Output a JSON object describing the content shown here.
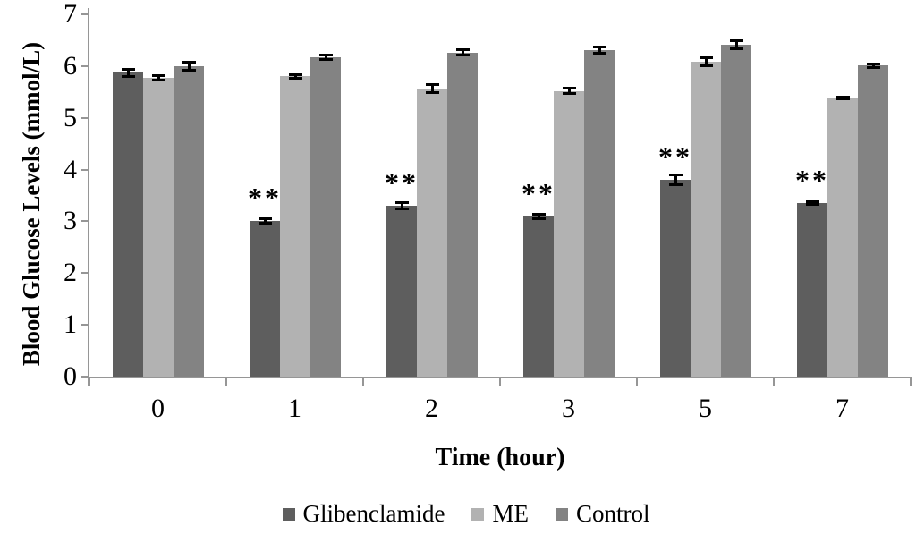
{
  "figure": {
    "y_axis_title": "Blood Glucose Levels (mmol/L)",
    "x_axis_title": "Time (hour)",
    "significance_marker": "**"
  },
  "legend": {
    "items": [
      {
        "label": "Glibenclamide",
        "color": "#5e5e5e"
      },
      {
        "label": "ME",
        "color": "#b2b2b2"
      },
      {
        "label": "Control",
        "color": "#838383"
      }
    ]
  },
  "chart_data": {
    "type": "bar",
    "title": "",
    "xlabel": "Time (hour)",
    "ylabel": "Blood Glucose Levels (mmol/L)",
    "categories": [
      "0",
      "1",
      "2",
      "3",
      "5",
      "7"
    ],
    "y_ticks": [
      0,
      1,
      2,
      3,
      4,
      5,
      6,
      7
    ],
    "ylim": [
      0,
      7
    ],
    "grid": false,
    "legend_position": "bottom",
    "error_bars": true,
    "series": [
      {
        "name": "Glibenclamide",
        "color": "#5e5e5e",
        "values": [
          5.87,
          3.0,
          3.3,
          3.1,
          3.8,
          3.35
        ],
        "errors": [
          0.1,
          0.07,
          0.08,
          0.07,
          0.12,
          0.05
        ],
        "annotations": [
          "",
          "**",
          "**",
          "**",
          "**",
          "**"
        ]
      },
      {
        "name": "ME",
        "color": "#b2b2b2",
        "values": [
          5.78,
          5.8,
          5.57,
          5.52,
          6.08,
          5.38
        ],
        "errors": [
          0.07,
          0.06,
          0.1,
          0.08,
          0.1,
          0.04
        ],
        "annotations": [
          "",
          "",
          "",
          "",
          "",
          ""
        ]
      },
      {
        "name": "Control",
        "color": "#838383",
        "values": [
          6.0,
          6.17,
          6.26,
          6.31,
          6.41,
          6.01
        ],
        "errors": [
          0.1,
          0.07,
          0.08,
          0.08,
          0.1,
          0.06
        ],
        "annotations": [
          "",
          "",
          "",
          "",
          "",
          ""
        ]
      }
    ]
  }
}
